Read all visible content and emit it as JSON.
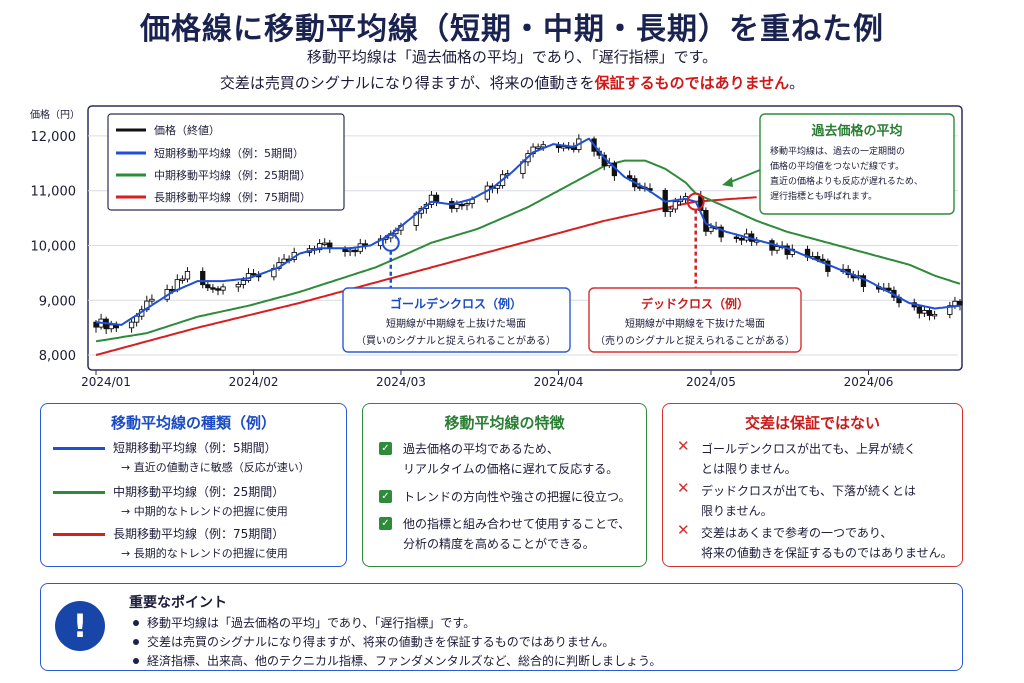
{
  "header": {
    "title": "価格線に移動平均線（短期・中期・長期）を重ねた例",
    "subtitle1": "移動平均線は「過去価格の平均」であり、「遅行指標」です。",
    "subtitle2_a": "交差は売買のシグナルになり得ますが、将来の値動きを",
    "subtitle2_b": "保証するものではありません",
    "subtitle2_c": "。"
  },
  "colors": {
    "price": "#111111",
    "short": "#1f4fd6",
    "mid": "#2e8b3a",
    "long": "#d62020",
    "navy": "#1a2350"
  },
  "chart_data": {
    "type": "line",
    "title": "",
    "ylabel": "価格（円）",
    "ylim": [
      7800,
      12400
    ],
    "yticks": [
      8000,
      9000,
      10000,
      11000,
      12000
    ],
    "ytick_labels": [
      "8,000",
      "9,000",
      "10,000",
      "11,000",
      "12,000"
    ],
    "xticks": [
      "2024/01",
      "2024/02",
      "2024/03",
      "2024/04",
      "2024/05",
      "2024/06"
    ],
    "x_range_days": [
      0,
      170
    ],
    "xtick_days": [
      0,
      31,
      60,
      91,
      121,
      152
    ],
    "legend": [
      {
        "name": "価格（終値）",
        "color": "#111111"
      },
      {
        "name": "短期移動平均線（例：5期間）",
        "color": "#1f4fd6"
      },
      {
        "name": "中期移動平均線（例：25期間）",
        "color": "#2e8b3a"
      },
      {
        "name": "長期移動平均線（例：75期間）",
        "color": "#d62020"
      }
    ],
    "legend_position": "top-left",
    "price_anchors": [
      [
        0,
        8600
      ],
      [
        5,
        8500
      ],
      [
        10,
        8900
      ],
      [
        15,
        9200
      ],
      [
        18,
        9500
      ],
      [
        22,
        9200
      ],
      [
        26,
        9300
      ],
      [
        30,
        9400
      ],
      [
        36,
        9600
      ],
      [
        40,
        9900
      ],
      [
        44,
        10000
      ],
      [
        50,
        9950
      ],
      [
        54,
        10000
      ],
      [
        58,
        10250
      ],
      [
        62,
        10600
      ],
      [
        66,
        10900
      ],
      [
        70,
        10700
      ],
      [
        74,
        10900
      ],
      [
        78,
        11100
      ],
      [
        82,
        11400
      ],
      [
        86,
        11800
      ],
      [
        90,
        11900
      ],
      [
        94,
        11700
      ],
      [
        96,
        12100
      ],
      [
        100,
        11500
      ],
      [
        104,
        11200
      ],
      [
        108,
        11000
      ],
      [
        112,
        10700
      ],
      [
        116,
        10900
      ],
      [
        118,
        10800
      ],
      [
        120,
        10300
      ],
      [
        124,
        10200
      ],
      [
        130,
        10100
      ],
      [
        136,
        9900
      ],
      [
        140,
        9800
      ],
      [
        144,
        9600
      ],
      [
        148,
        9450
      ],
      [
        152,
        9300
      ],
      [
        156,
        9100
      ],
      [
        160,
        8900
      ],
      [
        165,
        8750
      ],
      [
        170,
        9000
      ]
    ],
    "short_ma": [
      [
        0,
        8600
      ],
      [
        5,
        8550
      ],
      [
        10,
        8850
      ],
      [
        15,
        9150
      ],
      [
        20,
        9350
      ],
      [
        25,
        9350
      ],
      [
        30,
        9400
      ],
      [
        36,
        9600
      ],
      [
        40,
        9850
      ],
      [
        44,
        9950
      ],
      [
        50,
        9950
      ],
      [
        54,
        10000
      ],
      [
        58,
        10200
      ],
      [
        62,
        10500
      ],
      [
        66,
        10800
      ],
      [
        70,
        10750
      ],
      [
        74,
        10850
      ],
      [
        78,
        11050
      ],
      [
        82,
        11350
      ],
      [
        86,
        11700
      ],
      [
        90,
        11850
      ],
      [
        94,
        11800
      ],
      [
        97,
        11950
      ],
      [
        100,
        11600
      ],
      [
        104,
        11250
      ],
      [
        108,
        11050
      ],
      [
        112,
        10800
      ],
      [
        116,
        10850
      ],
      [
        118,
        10800
      ],
      [
        120,
        10400
      ],
      [
        124,
        10250
      ],
      [
        130,
        10100
      ],
      [
        136,
        9950
      ],
      [
        140,
        9800
      ],
      [
        144,
        9650
      ],
      [
        148,
        9500
      ],
      [
        152,
        9350
      ],
      [
        156,
        9150
      ],
      [
        160,
        8950
      ],
      [
        165,
        8850
      ],
      [
        170,
        8900
      ]
    ],
    "mid_ma": [
      [
        0,
        8250
      ],
      [
        10,
        8400
      ],
      [
        20,
        8700
      ],
      [
        30,
        8900
      ],
      [
        40,
        9150
      ],
      [
        50,
        9450
      ],
      [
        55,
        9600
      ],
      [
        60,
        9800
      ],
      [
        66,
        10050
      ],
      [
        75,
        10300
      ],
      [
        85,
        10700
      ],
      [
        95,
        11200
      ],
      [
        100,
        11450
      ],
      [
        104,
        11550
      ],
      [
        108,
        11550
      ],
      [
        112,
        11400
      ],
      [
        116,
        11150
      ],
      [
        118,
        10950
      ],
      [
        124,
        10700
      ],
      [
        130,
        10450
      ],
      [
        136,
        10250
      ],
      [
        142,
        10100
      ],
      [
        148,
        9950
      ],
      [
        154,
        9800
      ],
      [
        160,
        9650
      ],
      [
        165,
        9450
      ],
      [
        170,
        9300
      ]
    ],
    "long_ma": [
      [
        0,
        8000
      ],
      [
        20,
        8500
      ],
      [
        40,
        8950
      ],
      [
        60,
        9450
      ],
      [
        80,
        9950
      ],
      [
        100,
        10450
      ],
      [
        110,
        10650
      ],
      [
        118,
        10800
      ],
      [
        125,
        10850
      ],
      [
        130,
        10880
      ]
    ],
    "annotations": [
      {
        "label": "ゴールデンクロス（例）",
        "day": 58,
        "value": 10050,
        "color": "#1f4fd6"
      },
      {
        "label": "デッドクロス（例）",
        "day": 118,
        "value": 10800,
        "color": "#d62020"
      }
    ]
  },
  "chart_text": {
    "golden_title": "ゴールデンクロス（例）",
    "golden_l1": "短期線が中期線を上抜けた場面",
    "golden_l2": "（買いのシグナルと捉えられることがある）",
    "dead_title": "デッドクロス（例）",
    "dead_l1": "短期線が中期線を下抜けた場面",
    "dead_l2": "（売りのシグナルと捉えられることがある）",
    "callout_title": "過去価格の平均",
    "callout_l1": "移動平均線は、過去の一定期間の",
    "callout_l2": "価格の平均値をつないだ線です。",
    "callout_l3": "直近の価格よりも反応が遅れるため、",
    "callout_l4": "遅行指標とも呼ばれます。"
  },
  "types_box": {
    "title": "移動平均線の種類（例）",
    "short_label": "短期移動平均線（例：5期間）",
    "short_desc": "→ 直近の値動きに敏感（反応が速い）",
    "mid_label": "中期移動平均線（例：25期間）",
    "mid_desc": "→ 中期的なトレンドの把握に使用",
    "long_label": "長期移動平均線（例：75期間）",
    "long_desc": "→ 長期的なトレンドの把握に使用"
  },
  "features_box": {
    "title": "移動平均線の特徴",
    "item1_l1": "過去価格の平均であるため、",
    "item1_l2": "リアルタイムの価格に遅れて反応する。",
    "item2_l1": "トレンドの方向性や強さの把握に役立つ。",
    "item3_l1": "他の指標と組み合わせて使用することで、",
    "item3_l2": "分析の精度を高めることができる。"
  },
  "warning_box": {
    "title": "交差は保証ではない",
    "item1_l1": "ゴールデンクロスが出ても、上昇が続く",
    "item1_l2": "とは限りません。",
    "item2_l1": "デッドクロスが出ても、下落が続くとは",
    "item2_l2": "限りません。",
    "item3_l1": "交差はあくまで参考の一つであり、",
    "item3_l2": "将来の値動きを保証するものではありません。"
  },
  "points_box": {
    "title": "重要なポイント",
    "p1": "移動平均線は「過去価格の平均」であり、「遅行指標」です。",
    "p2": "交差は売買のシグナルになり得ますが、将来の値動きを保証するものではありません。",
    "p3": "経済指標、出来高、他のテクニカル指標、ファンダメンタルズなど、総合的に判断しましょう。"
  }
}
